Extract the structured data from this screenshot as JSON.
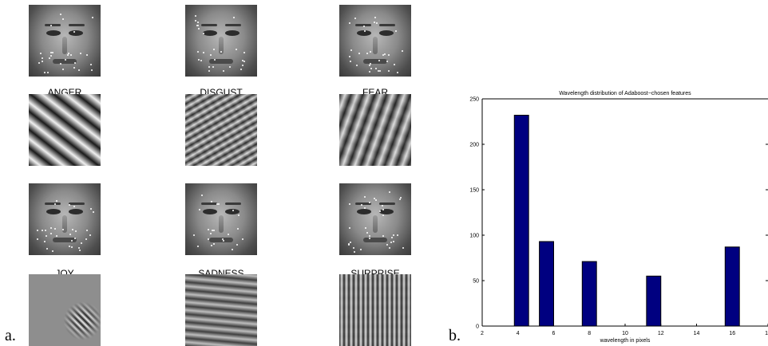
{
  "panel_a": {
    "label": "a.",
    "emotions": [
      "ANGER",
      "DISGUST",
      "FEAR",
      "JOY",
      "SADNESS",
      "SURPRISE"
    ]
  },
  "panel_b": {
    "label": "b."
  },
  "chart_data": {
    "type": "bar",
    "title": "Wavelength distribution of Adaboost−chosen features",
    "xlabel": "wavelength in pixels",
    "ylabel": "",
    "x": [
      4.2,
      5.6,
      8.0,
      11.6,
      16.0
    ],
    "values": [
      232,
      93,
      71,
      55,
      87
    ],
    "xlim": [
      2,
      18
    ],
    "ylim": [
      0,
      250
    ],
    "xticks": [
      "2",
      "4",
      "6",
      "8",
      "10",
      "12",
      "14",
      "16",
      "1"
    ],
    "yticks": [
      "0",
      "50",
      "100",
      "150",
      "200",
      "250"
    ],
    "bar_color": "#000080",
    "grid": false
  }
}
